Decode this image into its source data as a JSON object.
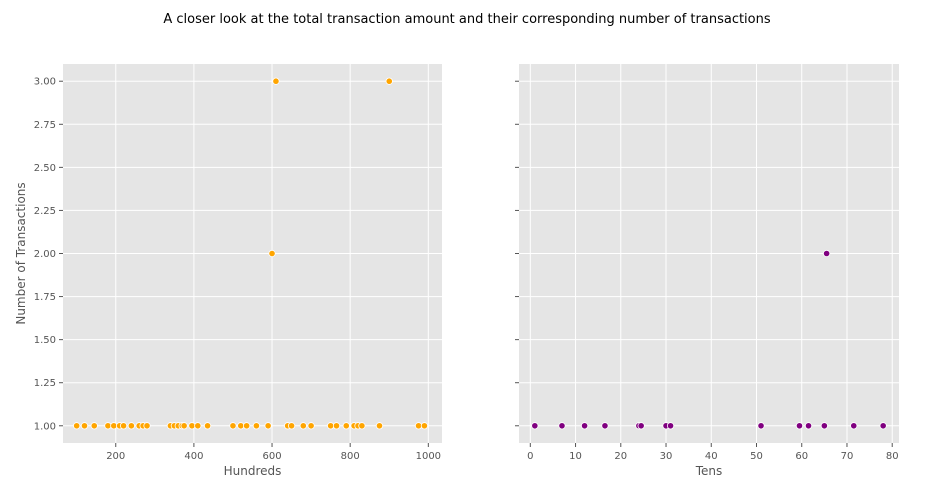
{
  "figure": {
    "title": "A closer look at the total transaction amount and their corresponding number of transactions"
  },
  "chart_data": [
    {
      "type": "scatter",
      "title": "",
      "xlabel": "Hundreds",
      "ylabel": "Number of Transactions",
      "xlim": [
        65,
        1035
      ],
      "ylim": [
        0.9,
        3.1
      ],
      "xticks": [
        200,
        400,
        600,
        800,
        1000
      ],
      "yticks": [
        1.0,
        1.25,
        1.5,
        1.75,
        2.0,
        2.25,
        2.5,
        2.75,
        3.0
      ],
      "ytick_labels": [
        "1.00",
        "1.25",
        "1.50",
        "1.75",
        "2.00",
        "2.25",
        "2.50",
        "2.75",
        "3.00"
      ],
      "grid": true,
      "color": "#ffa500",
      "points": [
        {
          "x": 100,
          "y": 1
        },
        {
          "x": 120,
          "y": 1
        },
        {
          "x": 145,
          "y": 1
        },
        {
          "x": 180,
          "y": 1
        },
        {
          "x": 195,
          "y": 1
        },
        {
          "x": 210,
          "y": 1
        },
        {
          "x": 220,
          "y": 1
        },
        {
          "x": 240,
          "y": 1
        },
        {
          "x": 260,
          "y": 1
        },
        {
          "x": 270,
          "y": 1
        },
        {
          "x": 280,
          "y": 1
        },
        {
          "x": 340,
          "y": 1
        },
        {
          "x": 350,
          "y": 1
        },
        {
          "x": 360,
          "y": 1
        },
        {
          "x": 370,
          "y": 1
        },
        {
          "x": 375,
          "y": 1
        },
        {
          "x": 395,
          "y": 1
        },
        {
          "x": 410,
          "y": 1
        },
        {
          "x": 435,
          "y": 1
        },
        {
          "x": 500,
          "y": 1
        },
        {
          "x": 520,
          "y": 1
        },
        {
          "x": 535,
          "y": 1
        },
        {
          "x": 560,
          "y": 1
        },
        {
          "x": 590,
          "y": 1
        },
        {
          "x": 600,
          "y": 2
        },
        {
          "x": 610,
          "y": 3
        },
        {
          "x": 640,
          "y": 1
        },
        {
          "x": 650,
          "y": 1
        },
        {
          "x": 680,
          "y": 1
        },
        {
          "x": 700,
          "y": 1
        },
        {
          "x": 750,
          "y": 1
        },
        {
          "x": 765,
          "y": 1
        },
        {
          "x": 790,
          "y": 1
        },
        {
          "x": 810,
          "y": 1
        },
        {
          "x": 820,
          "y": 1
        },
        {
          "x": 830,
          "y": 1
        },
        {
          "x": 875,
          "y": 1
        },
        {
          "x": 900,
          "y": 3
        },
        {
          "x": 975,
          "y": 1
        },
        {
          "x": 990,
          "y": 1
        }
      ]
    },
    {
      "type": "scatter",
      "title": "",
      "xlabel": "Tens",
      "ylabel": "",
      "xlim": [
        -2.5,
        81.5
      ],
      "ylim": [
        0.9,
        3.1
      ],
      "xticks": [
        0,
        10,
        20,
        30,
        40,
        50,
        60,
        70,
        80
      ],
      "yticks": [
        1.0,
        1.25,
        1.5,
        1.75,
        2.0,
        2.25,
        2.5,
        2.75,
        3.0
      ],
      "grid": true,
      "color": "#800080",
      "points": [
        {
          "x": 1,
          "y": 1
        },
        {
          "x": 7,
          "y": 1
        },
        {
          "x": 12,
          "y": 1
        },
        {
          "x": 16.5,
          "y": 1
        },
        {
          "x": 24,
          "y": 1
        },
        {
          "x": 24.5,
          "y": 1
        },
        {
          "x": 30,
          "y": 1
        },
        {
          "x": 31,
          "y": 1
        },
        {
          "x": 51,
          "y": 1
        },
        {
          "x": 59.5,
          "y": 1
        },
        {
          "x": 61.5,
          "y": 1
        },
        {
          "x": 65,
          "y": 1
        },
        {
          "x": 65.5,
          "y": 2
        },
        {
          "x": 71.5,
          "y": 1
        },
        {
          "x": 78,
          "y": 1
        }
      ]
    }
  ]
}
